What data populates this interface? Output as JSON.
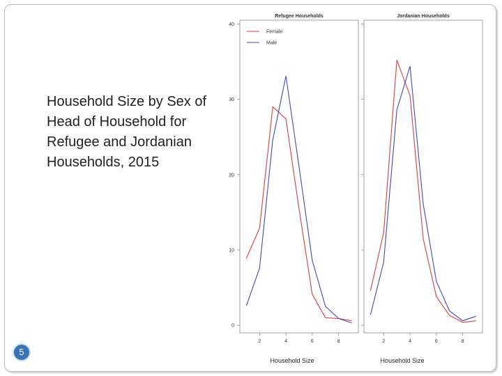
{
  "slide": {
    "title": "Household Size by Sex of Head of Household for Refugee and Jordanian Households, 2015",
    "page_number": "5",
    "accent_color": "#3b74b5"
  },
  "chart_data": [
    {
      "type": "line",
      "title": "Refugee Households",
      "xlabel": "Household Size",
      "ylabel": "",
      "x": [
        1,
        2,
        3,
        4,
        5,
        6,
        7,
        8,
        9
      ],
      "xticks": [
        2,
        4,
        6,
        8
      ],
      "xlim": [
        0.5,
        9.5
      ],
      "yticks": [
        0,
        10,
        20,
        30,
        40
      ],
      "ylim": [
        -1,
        40.5
      ],
      "grid": false,
      "legend": "top-left",
      "series": [
        {
          "name": "Female",
          "color": "#dd3b3b",
          "values": [
            8.9,
            12.9,
            29.0,
            27.4,
            15.4,
            4.1,
            1.0,
            0.9,
            0.6
          ]
        },
        {
          "name": "Male",
          "color": "#4545bb",
          "values": [
            2.6,
            7.6,
            24.6,
            33.1,
            21.0,
            8.6,
            2.5,
            0.9,
            0.3
          ]
        }
      ]
    },
    {
      "type": "line",
      "title": "Jordanian Households",
      "xlabel": "Household Size",
      "ylabel": "",
      "x": [
        1,
        2,
        3,
        4,
        5,
        6,
        7,
        8,
        9
      ],
      "xticks": [
        2,
        4,
        6,
        8
      ],
      "xlim": [
        0.5,
        9.5
      ],
      "yticks": [
        0,
        10,
        20,
        30,
        40
      ],
      "ylim": [
        -1,
        40.5
      ],
      "grid": false,
      "legend": "none",
      "series": [
        {
          "name": "Female",
          "color": "#dd3b3b",
          "values": [
            4.6,
            12.3,
            35.2,
            30.5,
            11.5,
            3.8,
            1.3,
            0.4,
            0.6
          ]
        },
        {
          "name": "Male",
          "color": "#4545bb",
          "values": [
            1.4,
            8.4,
            28.6,
            34.4,
            16.1,
            5.8,
            1.9,
            0.6,
            1.2
          ]
        }
      ]
    }
  ]
}
